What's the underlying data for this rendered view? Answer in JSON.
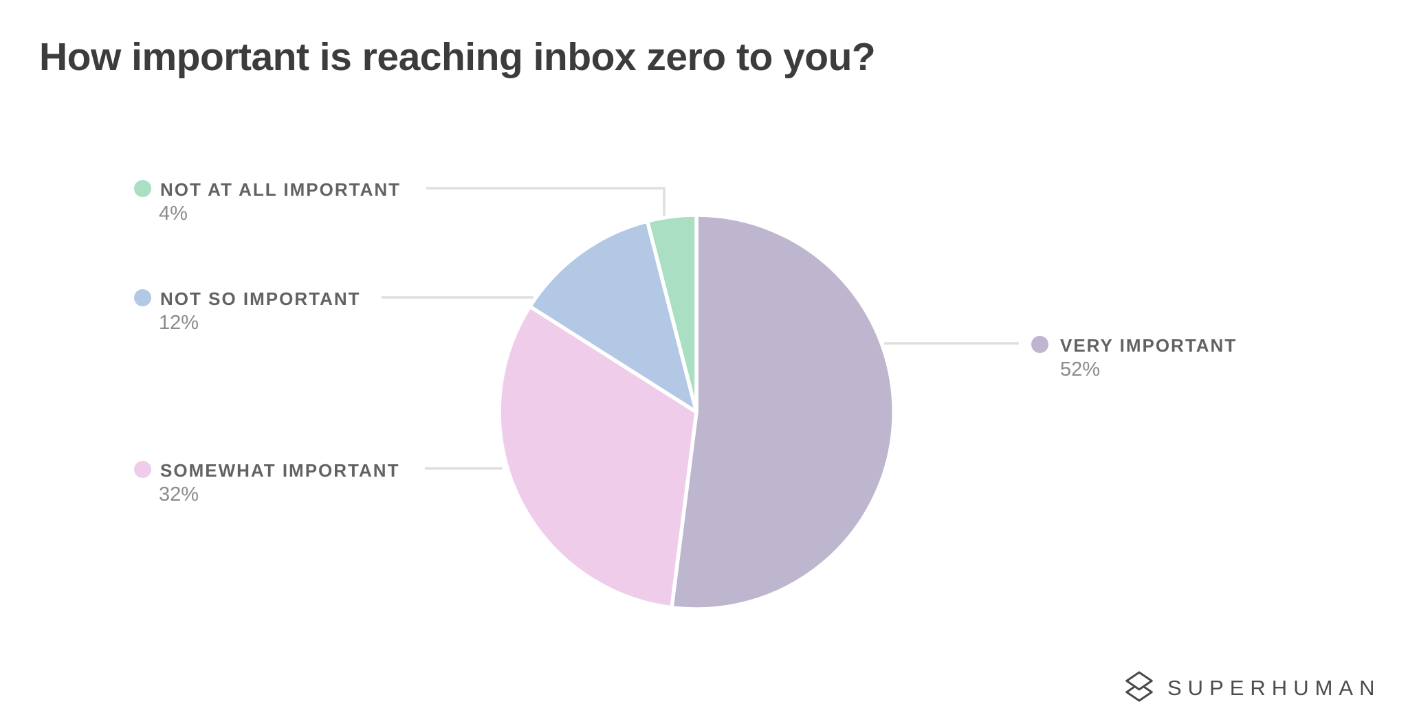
{
  "page": {
    "title": "How important is reaching inbox zero to you?"
  },
  "branding": {
    "wordmark": "SUPERHUMAN",
    "icon": "layers-diamond-icon",
    "text_color": "#4c4c4c"
  },
  "chart_data": {
    "type": "pie",
    "title": "How important is reaching inbox zero to you?",
    "direction": "clockwise",
    "start_angle_deg": 0,
    "legend_position": "callouts-left-and-right",
    "slices": [
      {
        "label": "VERY IMPORTANT",
        "value": 52,
        "percent_label": "52%",
        "color": "#beb5cf"
      },
      {
        "label": "SOMEWHAT IMPORTANT",
        "value": 32,
        "percent_label": "32%",
        "color": "#efccea"
      },
      {
        "label": "NOT SO IMPORTANT",
        "value": 12,
        "percent_label": "12%",
        "color": "#b3c8e5"
      },
      {
        "label": "NOT AT ALL IMPORTANT",
        "value": 4,
        "percent_label": "4%",
        "color": "#aadfc3"
      }
    ],
    "colors": {
      "connector_line": "#dfdfdf",
      "slice_gap": "#ffffff",
      "title_text": "#3c3c3c",
      "label_text": "#626262",
      "percent_text": "#8b8b8b"
    }
  }
}
